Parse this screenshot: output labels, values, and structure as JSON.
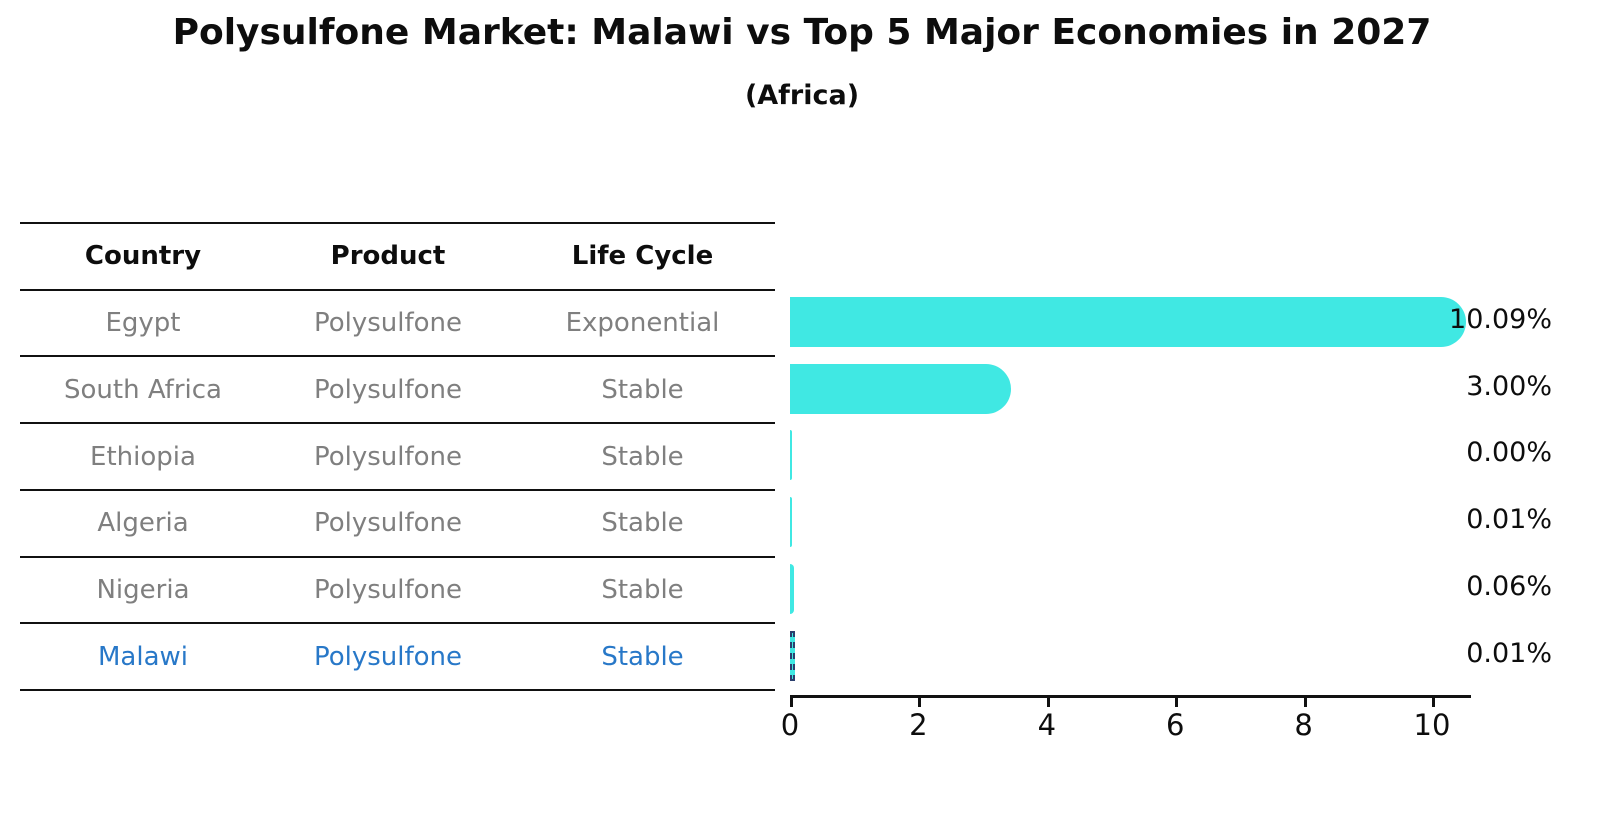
{
  "title": "Polysulfone Market: Malawi vs Top 5 Major Economies in 2027",
  "subtitle": "(Africa)",
  "table": {
    "headers": [
      "Country",
      "Product",
      "Life Cycle"
    ],
    "rows": [
      {
        "country": "Egypt",
        "product": "Polysulfone",
        "life_cycle": "Exponential",
        "highlight": false
      },
      {
        "country": "South Africa",
        "product": "Polysulfone",
        "life_cycle": "Stable",
        "highlight": false
      },
      {
        "country": "Ethiopia",
        "product": "Polysulfone",
        "life_cycle": "Stable",
        "highlight": false
      },
      {
        "country": "Algeria",
        "product": "Polysulfone",
        "life_cycle": "Stable",
        "highlight": false
      },
      {
        "country": "Nigeria",
        "product": "Polysulfone",
        "life_cycle": "Stable",
        "highlight": false
      },
      {
        "country": "Malawi",
        "product": "Polysulfone",
        "life_cycle": "Stable",
        "highlight": true
      }
    ]
  },
  "chart_data": {
    "type": "bar",
    "orientation": "horizontal",
    "title": "Polysulfone Market: Malawi vs Top 5 Major Economies in 2027",
    "subtitle": "(Africa)",
    "categories": [
      "Egypt",
      "South Africa",
      "Ethiopia",
      "Algeria",
      "Nigeria",
      "Malawi"
    ],
    "values": [
      10.09,
      3.0,
      0.0,
      0.01,
      0.06,
      0.01
    ],
    "value_labels": [
      "10.09%",
      "3.00%",
      "0.00%",
      "0.01%",
      "0.06%",
      "0.01%"
    ],
    "x_ticks": [
      0,
      2,
      4,
      6,
      8,
      10
    ],
    "xlim": [
      0,
      10.6
    ],
    "grid": false,
    "legend": "none",
    "bar_color": "#40e8e3",
    "highlight_index": 5,
    "highlight_style": "thin bar with dashed navy outline",
    "highlight_text_color": "#2878c8",
    "axis_color": "#111111",
    "body_text_color": "#7f7f7f"
  }
}
